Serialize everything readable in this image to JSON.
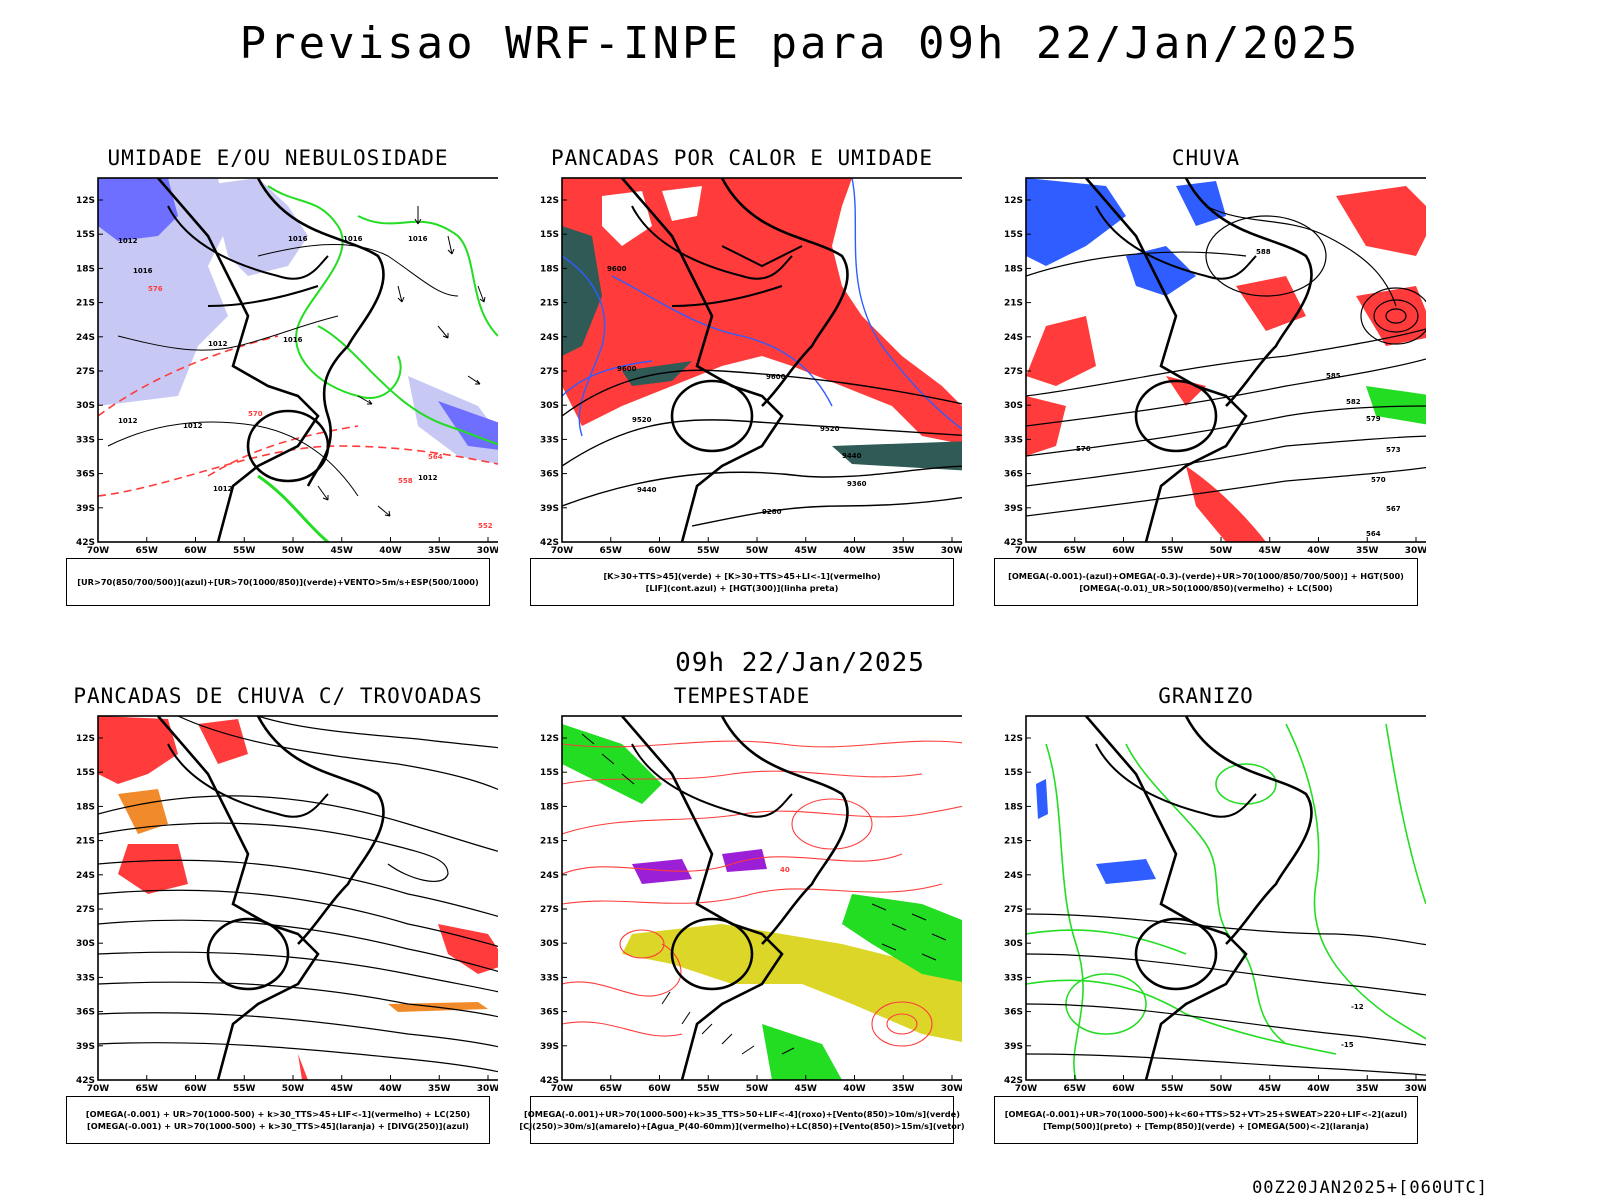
{
  "title": "Previsao WRF-INPE  para 09h 22/Jan/2025",
  "mid_label": "09h 22/Jan/2025",
  "footer": "00Z20JAN2025+[060UTC]",
  "lat_labels": [
    "12S",
    "15S",
    "18S",
    "21S",
    "24S",
    "27S",
    "30S",
    "33S",
    "36S",
    "39S",
    "42S"
  ],
  "lon_labels": [
    "70W",
    "65W",
    "60W",
    "55W",
    "50W",
    "45W",
    "40W",
    "35W",
    "30W"
  ],
  "colors": {
    "blue_shade": "#6f6fff",
    "light_blue": "#c8c8f5",
    "green": "#22dd22",
    "red": "#ff3b3b",
    "dark_teal": "#2f5a55",
    "yellow": "#dcd628",
    "orange": "#f08a2a",
    "purple": "#9b1fd6",
    "contour_blue": "#2f5dff"
  },
  "panels": [
    {
      "title": "UMIDADE E/OU NEBULOSIDADE",
      "caption": [
        "[UR>70(850/700/500)](azul)+[UR>70(1000/850)](verde)+VENTO>5m/s+ESP(500/1000)"
      ],
      "contour_labels": [
        "1012",
        "1016",
        "1016",
        "1016",
        "1016",
        "1012",
        "1012",
        "1012",
        "1012",
        "1012",
        "1016",
        "576",
        "570",
        "564",
        "558",
        "552"
      ]
    },
    {
      "title": "PANCADAS POR CALOR E UMIDADE",
      "caption": [
        "[K>30+TTS>45](verde) + [K>30+TTS>45+LI<-1](vermelho)",
        "[LIF](cont.azul) + [HGT(300)](linha preta)"
      ],
      "contour_labels": [
        "9600",
        "9600",
        "9600",
        "9520",
        "9520",
        "9440",
        "9440",
        "9360",
        "9280"
      ]
    },
    {
      "title": "CHUVA",
      "caption": [
        "[OMEGA(-0.001)-(azul)+OMEGA(-0.3)-(verde)+UR>70(1000/850/700/500)] + HGT(500)",
        "[OMEGA(-0.01)_UR>50(1000/850)(vermelho) + LC(500)"
      ],
      "contour_labels": [
        "588",
        "585",
        "582",
        "579",
        "576",
        "573",
        "570",
        "567",
        "564"
      ]
    },
    {
      "title": "PANCADAS DE CHUVA C/ TROVOADAS",
      "caption": [
        "[OMEGA(-0.001) + UR>70(1000-500) + k>30_TTS>45+LIF<-1](vermelho) + LC(250)",
        "[OMEGA(-0.001) + UR>70(1000-500) + k>30_TTS>45](laranja) + [DIVG(250)](azul)"
      ],
      "contour_labels": []
    },
    {
      "title": "TEMPESTADE",
      "caption": [
        "[OMEGA(-0.001)+UR>70(1000-500)+k>35_TTS>50+LIF<-4](roxo)+[Vento(850)>10m/s](verde)",
        "[CJ(250)>30m/s](amarelo)+[Agua_P(40-60mm)](vermelho)+LC(850)+[Vento(850)>15m/s](vetor)"
      ],
      "contour_labels": [
        "40"
      ]
    },
    {
      "title": "GRANIZO",
      "caption": [
        "[OMEGA(-0.001)+UR>70(1000-500)+k<60+TTS>52+VT>25+SWEAT>220+LIF<-2](azul)",
        "[Temp(500)](preto) + [Temp(850)](verde) + [OMEGA(500)<-2](laranja)"
      ],
      "contour_labels": [
        "-12",
        "-15"
      ]
    }
  ]
}
